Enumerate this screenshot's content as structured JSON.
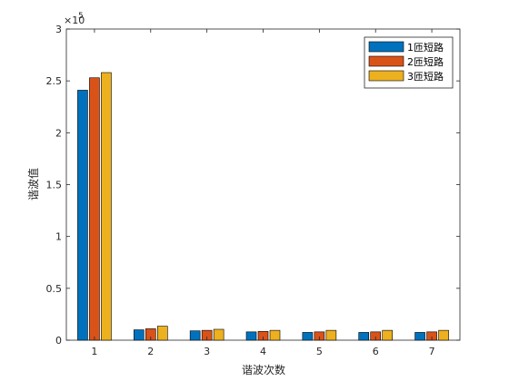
{
  "chart_data": {
    "type": "bar",
    "categories": [
      "1",
      "2",
      "3",
      "4",
      "5",
      "6",
      "7"
    ],
    "series": [
      {
        "name": "1匝短路",
        "color": "#0072BD",
        "values": [
          241000,
          10000,
          9000,
          8000,
          7500,
          7500,
          7500
        ]
      },
      {
        "name": "2匝短路",
        "color": "#D95319",
        "values": [
          253000,
          11000,
          9500,
          8500,
          8000,
          8000,
          8000
        ]
      },
      {
        "name": "3匝短路",
        "color": "#EDB120",
        "values": [
          258000,
          13500,
          10500,
          9500,
          9500,
          9500,
          9500
        ]
      }
    ],
    "xlabel": "谐波次数",
    "ylabel": "谐波值",
    "ylim": [
      0,
      300000
    ],
    "yticks": [
      0,
      0.5,
      1,
      1.5,
      2,
      2.5,
      3
    ],
    "y_exponent_label": "×10",
    "y_exponent_power": "5",
    "legend_position": "top-right",
    "grid": false
  }
}
